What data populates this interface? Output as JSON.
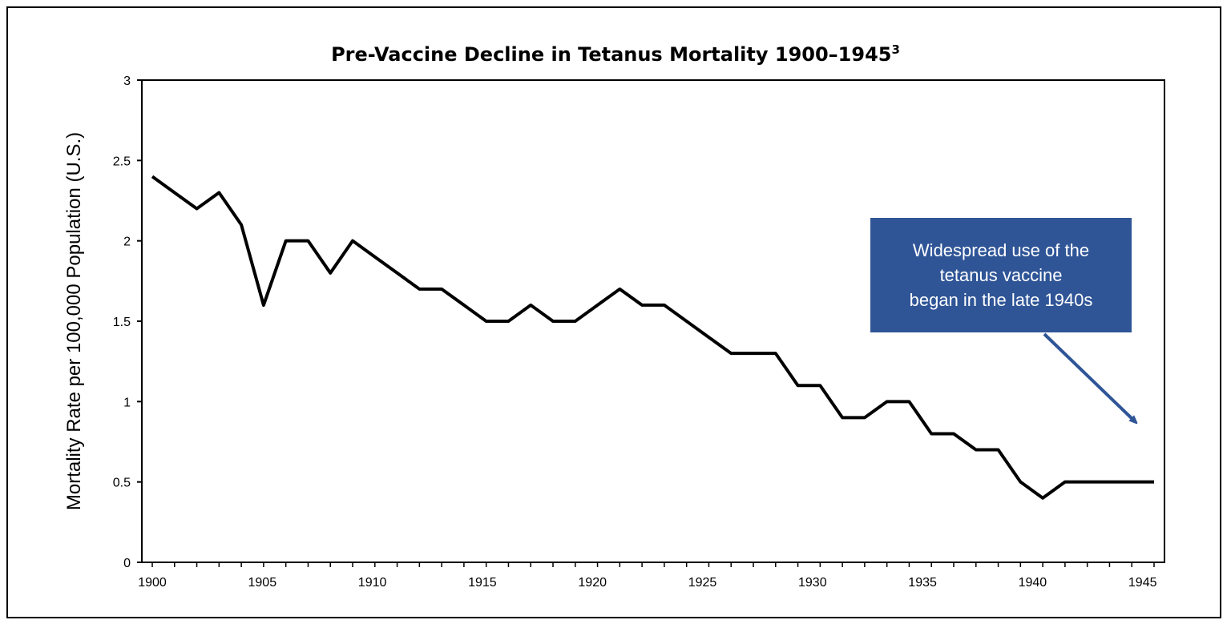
{
  "chart_data": {
    "type": "line",
    "title": "Pre-Vaccine Decline in Tetanus Mortality 1900–1945",
    "title_superscript": "3",
    "xlabel": "",
    "ylabel": "Mortality Rate per 100,000 Population (U.S.)",
    "ylim": [
      0,
      3
    ],
    "yticks": [
      "0",
      "0.5",
      "1",
      "1.5",
      "2",
      "2.5",
      "3"
    ],
    "xticks": [
      "1900",
      "1905",
      "1910",
      "1915",
      "1920",
      "1925",
      "1930",
      "1935",
      "1940",
      "1945"
    ],
    "grid": false,
    "line_color": "#000000",
    "x": [
      1900,
      1901,
      1902,
      1903,
      1904,
      1905,
      1906,
      1907,
      1908,
      1909,
      1910,
      1911,
      1912,
      1913,
      1914,
      1915,
      1916,
      1917,
      1918,
      1919,
      1920,
      1921,
      1922,
      1923,
      1924,
      1925,
      1926,
      1927,
      1928,
      1929,
      1930,
      1931,
      1932,
      1933,
      1934,
      1935,
      1936,
      1937,
      1938,
      1939,
      1940,
      1941,
      1942,
      1943,
      1944,
      1945
    ],
    "values": [
      2.4,
      2.3,
      2.2,
      2.3,
      2.1,
      1.6,
      2.0,
      2.0,
      1.8,
      2.0,
      1.9,
      1.8,
      1.7,
      1.7,
      1.6,
      1.5,
      1.5,
      1.6,
      1.5,
      1.5,
      1.6,
      1.7,
      1.6,
      1.6,
      1.5,
      1.4,
      1.3,
      1.3,
      1.3,
      1.1,
      1.1,
      0.9,
      0.9,
      1.0,
      1.0,
      0.8,
      0.8,
      0.7,
      0.7,
      0.5,
      0.4,
      0.5,
      0.5,
      0.5,
      0.5,
      0.5
    ],
    "annotation": {
      "lines": [
        "Widespread use of the",
        "tetanus vaccine",
        "began in the late 1940s"
      ],
      "box_color": "#2f5597",
      "arrow_color": "#2f5597"
    }
  }
}
